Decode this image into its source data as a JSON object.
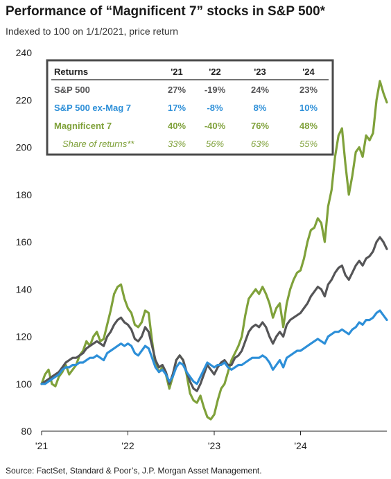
{
  "header": {
    "title": "Performance of “Magnificent 7” stocks in S&P 500*",
    "subtitle": "Indexed to 100 on 1/1/2021, price return"
  },
  "footer": {
    "source": "Source: FactSet, Standard & Poor’s, J.P. Morgan Asset Management."
  },
  "colors": {
    "sp500": "#555557",
    "ex_mag7": "#2d8fd8",
    "mag7": "#7fa13a",
    "table_border": "#4a4a4a"
  },
  "chart_data": {
    "type": "line",
    "ylim": [
      80,
      240
    ],
    "yticks": [
      80,
      100,
      120,
      140,
      160,
      180,
      200,
      220,
      240
    ],
    "xlim": [
      2021.0,
      2025.0
    ],
    "xticks": [
      {
        "value": 2021.0,
        "label": "'21"
      },
      {
        "value": 2022.0,
        "label": "'22"
      },
      {
        "value": 2023.0,
        "label": "'23"
      },
      {
        "value": 2024.0,
        "label": "'24"
      }
    ],
    "grid": false,
    "series": [
      {
        "key": "mag7",
        "x": [
          2021.0,
          2021.04,
          2021.08,
          2021.12,
          2021.16,
          2021.2,
          2021.24,
          2021.28,
          2021.32,
          2021.36,
          2021.4,
          2021.44,
          2021.48,
          2021.52,
          2021.56,
          2021.6,
          2021.64,
          2021.68,
          2021.72,
          2021.76,
          2021.8,
          2021.84,
          2021.88,
          2021.92,
          2021.96,
          2022.0,
          2022.04,
          2022.08,
          2022.12,
          2022.16,
          2022.2,
          2022.24,
          2022.28,
          2022.32,
          2022.36,
          2022.4,
          2022.44,
          2022.48,
          2022.52,
          2022.56,
          2022.6,
          2022.64,
          2022.68,
          2022.72,
          2022.76,
          2022.8,
          2022.84,
          2022.88,
          2022.92,
          2022.96,
          2023.0,
          2023.04,
          2023.08,
          2023.12,
          2023.16,
          2023.2,
          2023.24,
          2023.28,
          2023.32,
          2023.36,
          2023.4,
          2023.44,
          2023.48,
          2023.52,
          2023.56,
          2023.6,
          2023.64,
          2023.68,
          2023.72,
          2023.76,
          2023.8,
          2023.84,
          2023.88,
          2023.92,
          2023.96,
          2024.0,
          2024.04,
          2024.08,
          2024.12,
          2024.16,
          2024.2,
          2024.24,
          2024.28,
          2024.32,
          2024.36,
          2024.4,
          2024.44,
          2024.48,
          2024.52,
          2024.56,
          2024.6,
          2024.64,
          2024.68,
          2024.72,
          2024.76,
          2024.8,
          2024.84,
          2024.88,
          2024.92,
          2024.96,
          2025.0
        ],
        "values": [
          100,
          104,
          106,
          100,
          99,
          103,
          105,
          108,
          104,
          106,
          108,
          112,
          114,
          118,
          116,
          120,
          122,
          118,
          119,
          125,
          131,
          138,
          141,
          142,
          136,
          132,
          130,
          125,
          124,
          126,
          131,
          130,
          118,
          108,
          105,
          107,
          104,
          98,
          103,
          110,
          112,
          110,
          104,
          96,
          93,
          92,
          95,
          90,
          86,
          85,
          87,
          93,
          98,
          100,
          105,
          110,
          113,
          116,
          120,
          129,
          136,
          138,
          140,
          138,
          141,
          138,
          134,
          128,
          132,
          134,
          124,
          134,
          140,
          144,
          147,
          148,
          153,
          160,
          165,
          166,
          170,
          168,
          160,
          175,
          182,
          196,
          205,
          208,
          193,
          180,
          188,
          198,
          200,
          196,
          205,
          203,
          206,
          220,
          228,
          223,
          219
        ]
      },
      {
        "key": "sp500",
        "x": [
          2021.0,
          2021.04,
          2021.08,
          2021.12,
          2021.16,
          2021.2,
          2021.24,
          2021.28,
          2021.32,
          2021.36,
          2021.4,
          2021.44,
          2021.48,
          2021.52,
          2021.56,
          2021.6,
          2021.64,
          2021.68,
          2021.72,
          2021.76,
          2021.8,
          2021.84,
          2021.88,
          2021.92,
          2021.96,
          2022.0,
          2022.04,
          2022.08,
          2022.12,
          2022.16,
          2022.2,
          2022.24,
          2022.28,
          2022.32,
          2022.36,
          2022.4,
          2022.44,
          2022.48,
          2022.52,
          2022.56,
          2022.6,
          2022.64,
          2022.68,
          2022.72,
          2022.76,
          2022.8,
          2022.84,
          2022.88,
          2022.92,
          2022.96,
          2023.0,
          2023.04,
          2023.08,
          2023.12,
          2023.16,
          2023.2,
          2023.24,
          2023.28,
          2023.32,
          2023.36,
          2023.4,
          2023.44,
          2023.48,
          2023.52,
          2023.56,
          2023.6,
          2023.64,
          2023.68,
          2023.72,
          2023.76,
          2023.8,
          2023.84,
          2023.88,
          2023.92,
          2023.96,
          2024.0,
          2024.04,
          2024.08,
          2024.12,
          2024.16,
          2024.2,
          2024.24,
          2024.28,
          2024.32,
          2024.36,
          2024.4,
          2024.44,
          2024.48,
          2024.52,
          2024.56,
          2024.6,
          2024.64,
          2024.68,
          2024.72,
          2024.76,
          2024.8,
          2024.84,
          2024.88,
          2024.92,
          2024.96,
          2025.0
        ],
        "values": [
          100,
          101,
          102,
          103,
          104,
          105,
          107,
          109,
          110,
          111,
          111,
          112,
          113,
          115,
          116,
          117,
          118,
          117,
          116,
          120,
          122,
          125,
          127,
          128,
          126,
          125,
          123,
          119,
          118,
          120,
          124,
          122,
          116,
          110,
          107,
          108,
          105,
          100,
          104,
          110,
          112,
          110,
          105,
          101,
          98,
          97,
          100,
          104,
          108,
          106,
          104,
          107,
          109,
          110,
          108,
          108,
          111,
          112,
          114,
          118,
          122,
          124,
          125,
          124,
          126,
          124,
          120,
          117,
          120,
          122,
          120,
          125,
          127,
          128,
          129,
          130,
          132,
          134,
          137,
          139,
          141,
          140,
          137,
          142,
          144,
          147,
          149,
          150,
          146,
          144,
          147,
          150,
          152,
          150,
          153,
          154,
          156,
          160,
          162,
          160,
          157
        ]
      },
      {
        "key": "ex_mag7",
        "x": [
          2021.0,
          2021.04,
          2021.08,
          2021.12,
          2021.16,
          2021.2,
          2021.24,
          2021.28,
          2021.32,
          2021.36,
          2021.4,
          2021.44,
          2021.48,
          2021.52,
          2021.56,
          2021.6,
          2021.64,
          2021.68,
          2021.72,
          2021.76,
          2021.8,
          2021.84,
          2021.88,
          2021.92,
          2021.96,
          2022.0,
          2022.04,
          2022.08,
          2022.12,
          2022.16,
          2022.2,
          2022.24,
          2022.28,
          2022.32,
          2022.36,
          2022.4,
          2022.44,
          2022.48,
          2022.52,
          2022.56,
          2022.6,
          2022.64,
          2022.68,
          2022.72,
          2022.76,
          2022.8,
          2022.84,
          2022.88,
          2022.92,
          2022.96,
          2023.0,
          2023.04,
          2023.08,
          2023.12,
          2023.16,
          2023.2,
          2023.24,
          2023.28,
          2023.32,
          2023.36,
          2023.4,
          2023.44,
          2023.48,
          2023.52,
          2023.56,
          2023.6,
          2023.64,
          2023.68,
          2023.72,
          2023.76,
          2023.8,
          2023.84,
          2023.88,
          2023.92,
          2023.96,
          2024.0,
          2024.04,
          2024.08,
          2024.12,
          2024.16,
          2024.2,
          2024.24,
          2024.28,
          2024.32,
          2024.36,
          2024.4,
          2024.44,
          2024.48,
          2024.52,
          2024.56,
          2024.6,
          2024.64,
          2024.68,
          2024.72,
          2024.76,
          2024.8,
          2024.84,
          2024.88,
          2024.92,
          2024.96,
          2025.0
        ],
        "values": [
          100,
          100,
          101,
          102,
          103,
          104,
          106,
          107,
          107,
          108,
          108,
          109,
          109,
          110,
          111,
          111,
          112,
          111,
          110,
          113,
          114,
          115,
          116,
          117,
          116,
          117,
          116,
          113,
          112,
          114,
          116,
          115,
          111,
          107,
          105,
          106,
          104,
          101,
          103,
          107,
          109,
          108,
          105,
          103,
          101,
          100,
          103,
          106,
          109,
          108,
          107,
          108,
          108,
          109,
          107,
          106,
          107,
          108,
          108,
          109,
          110,
          111,
          111,
          111,
          112,
          111,
          109,
          106,
          108,
          110,
          107,
          111,
          112,
          113,
          114,
          114,
          115,
          116,
          117,
          118,
          119,
          118,
          117,
          120,
          121,
          122,
          122,
          123,
          122,
          121,
          123,
          124,
          126,
          125,
          127,
          127,
          128,
          130,
          131,
          129,
          127
        ]
      }
    ],
    "table": {
      "header": [
        "Returns",
        "'21",
        "'22",
        "'23",
        "'24"
      ],
      "rows": [
        {
          "key": "sp500",
          "label": "S&P 500",
          "values": [
            "27%",
            "-19%",
            "24%",
            "23%"
          ],
          "style": "bold"
        },
        {
          "key": "ex_mag7",
          "label": "S&P 500 ex-Mag 7",
          "values": [
            "17%",
            "-8%",
            "8%",
            "10%"
          ],
          "style": "bold"
        },
        {
          "key": "mag7",
          "label": "Magnificent 7",
          "values": [
            "40%",
            "-40%",
            "76%",
            "48%"
          ],
          "style": "bold"
        },
        {
          "key": "mag7",
          "label": "Share of returns**",
          "values": [
            "33%",
            "56%",
            "63%",
            "55%"
          ],
          "style": "italic"
        }
      ]
    }
  }
}
